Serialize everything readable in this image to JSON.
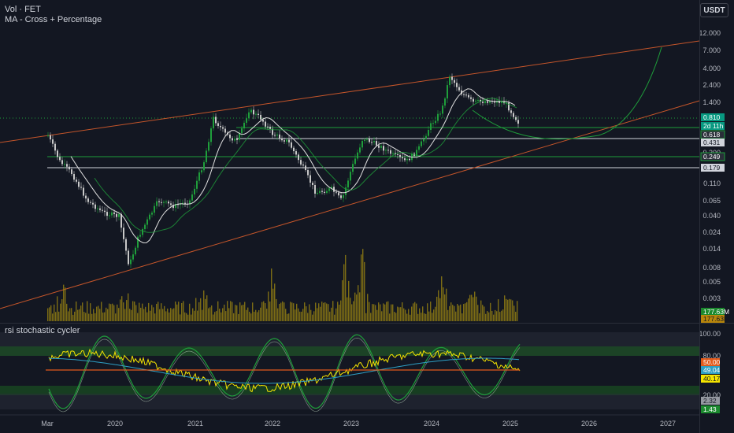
{
  "legend": {
    "line1": "Vol · FET",
    "line2": "MA - Cross + Percentage"
  },
  "currency": "USDT",
  "indicator": {
    "title": "rsi stochastic cycler"
  },
  "price_axis": {
    "ticks": [
      "12.000",
      "7.000",
      "4.000",
      "2.400",
      "1.400",
      "0.300",
      "0.110",
      "0.065",
      "0.040",
      "0.024",
      "0.014",
      "0.008",
      "0.005",
      "0.003"
    ],
    "badges": [
      {
        "text": "0.810",
        "bg": "#089981",
        "fg": "#ffffff"
      },
      {
        "text": "2d 11h",
        "bg": "#089981",
        "fg": "#ffffff"
      },
      {
        "text": "0.618",
        "bg": "#2a2e39",
        "fg": "#ffffff",
        "border": "#1e9e3a"
      },
      {
        "text": "0.431",
        "bg": "#d1d4dc",
        "fg": "#131722"
      },
      {
        "text": "0.249",
        "bg": "#2a2e39",
        "fg": "#ffffff",
        "border": "#1e9e3a"
      },
      {
        "text": "0.179",
        "bg": "#d1d4dc",
        "fg": "#131722"
      },
      {
        "text": "177.63M",
        "bg": "#1b8a2e",
        "fg": "#ffffff"
      },
      {
        "text": "177.63M",
        "bg": "#b8860b",
        "fg": "#131722"
      }
    ]
  },
  "osc_axis": {
    "ticks": [
      "100.00",
      "80.00",
      "20.00"
    ],
    "badges": [
      {
        "text": "50.00",
        "bg": "#e25a1c",
        "fg": "#ffffff"
      },
      {
        "text": "49.04",
        "bg": "#2e9fc4",
        "fg": "#ffffff"
      },
      {
        "text": "40.17",
        "bg": "#f5e400",
        "fg": "#131722"
      },
      {
        "text": "2.32",
        "bg": "#9598a1",
        "fg": "#131722"
      },
      {
        "text": "1.43",
        "bg": "#1b8a2e",
        "fg": "#ffffff"
      }
    ]
  },
  "time_axis": {
    "labels": [
      "Mar",
      "2020",
      "2021",
      "2022",
      "2023",
      "2024",
      "2025",
      "2026",
      "2027"
    ]
  },
  "colors": {
    "up": "#1f9e3b",
    "down": "#c8c8c8",
    "channel": "#c4552a",
    "hline_green": "#1e9e3a",
    "hline_white": "#d1d4dc",
    "volume": "#a08a12",
    "rsi": "#f5e400",
    "fast": "#2e9fc4",
    "stoch": "#1f9e3b",
    "mid": "#e25a1c"
  }
}
